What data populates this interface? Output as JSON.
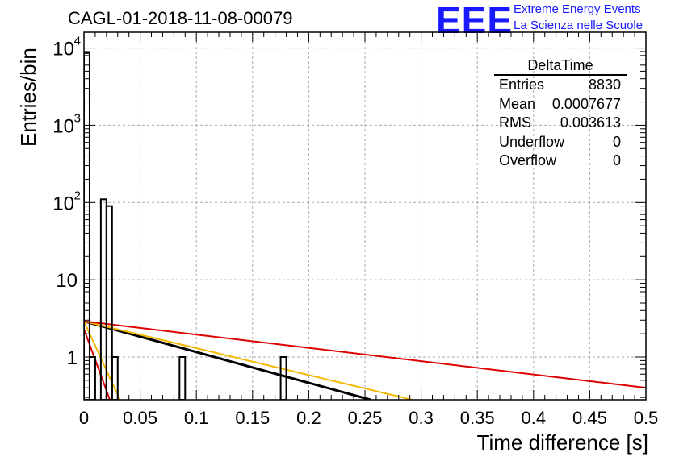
{
  "header": {
    "title": "CAGL-01-2018-11-08-00079"
  },
  "logo": {
    "mark": "EEE",
    "line1": "Extreme Energy Events",
    "line2": "La Scienza nelle Scuole",
    "color": "#1a1aff"
  },
  "stats_box": {
    "title": "DeltaTime",
    "rows": [
      {
        "label": "Entries",
        "value": "8830"
      },
      {
        "label": "Mean",
        "value": "0.0007677"
      },
      {
        "label": "RMS",
        "value": "0.003613"
      },
      {
        "label": "Underflow",
        "value": "0"
      },
      {
        "label": "Overflow",
        "value": "0"
      }
    ]
  },
  "chart_data": {
    "type": "histogram",
    "title": "CAGL-01-2018-11-08-00079",
    "xlabel": "Time difference [s]",
    "ylabel": "Entries/bin",
    "xlim": [
      0,
      0.5
    ],
    "ylim": [
      0.28,
      16000
    ],
    "yscale": "log",
    "grid": true,
    "x_ticks": [
      "0",
      "0.05",
      "0.1",
      "0.15",
      "0.2",
      "0.25",
      "0.3",
      "0.35",
      "0.4",
      "0.45",
      "0.5"
    ],
    "y_ticks": [
      {
        "value": 1,
        "label": "1"
      },
      {
        "value": 10,
        "label": "10"
      },
      {
        "value": 100,
        "label": "10",
        "sup": "2"
      },
      {
        "value": 1000,
        "label": "10",
        "sup": "3"
      },
      {
        "value": 10000,
        "label": "10",
        "sup": "4"
      }
    ],
    "bin_width": 0.005,
    "bins": [
      {
        "x0": 0.0,
        "x1": 0.005,
        "count": 8600
      },
      {
        "x0": 0.005,
        "x1": 0.01,
        "count": 1
      },
      {
        "x0": 0.015,
        "x1": 0.02,
        "count": 110
      },
      {
        "x0": 0.02,
        "x1": 0.025,
        "count": 90
      },
      {
        "x0": 0.025,
        "x1": 0.03,
        "count": 1
      },
      {
        "x0": 0.085,
        "x1": 0.09,
        "count": 1
      },
      {
        "x0": 0.175,
        "x1": 0.18,
        "count": 1
      }
    ],
    "fits": [
      {
        "color": "#000000",
        "points": [
          [
            0.0,
            2.9
          ],
          [
            0.255,
            0.28
          ]
        ]
      },
      {
        "color": "#f5b800",
        "points": [
          [
            0.0,
            2.9
          ],
          [
            0.292,
            0.28
          ]
        ]
      },
      {
        "color": "#dd0000",
        "points": [
          [
            0.0,
            2.9
          ],
          [
            0.5,
            0.4
          ]
        ]
      },
      {
        "color": "#dd0000",
        "points": [
          [
            0.0,
            2.3
          ],
          [
            0.023,
            0.28
          ]
        ]
      },
      {
        "color": "#f5b800",
        "points": [
          [
            0.0,
            2.9
          ],
          [
            0.032,
            0.28
          ]
        ]
      }
    ]
  }
}
